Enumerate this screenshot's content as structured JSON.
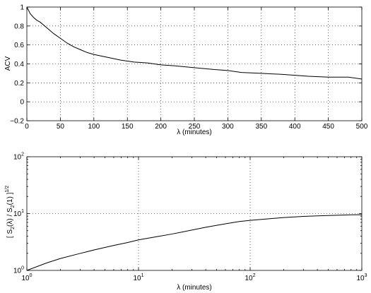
{
  "chart_data": [
    {
      "type": "line",
      "title": "",
      "xlabel": "λ (minutes)",
      "ylabel": "ACV",
      "xlim": [
        0,
        500
      ],
      "ylim": [
        -0.2,
        1
      ],
      "xscale": "linear",
      "yscale": "linear",
      "grid": true,
      "x_ticks": [
        0,
        50,
        100,
        150,
        200,
        250,
        300,
        350,
        400,
        450,
        500
      ],
      "x_tick_labels": [
        "0",
        "50",
        "100",
        "150",
        "200",
        "250",
        "300",
        "350",
        "400",
        "450",
        "500"
      ],
      "y_ticks": [
        -0.2,
        0,
        0.2,
        0.4,
        0.6,
        0.8,
        1
      ],
      "y_tick_labels": [
        "−0.2",
        "0",
        "0.2",
        "0.4",
        "0.6",
        "0.8",
        "1"
      ],
      "series": [
        {
          "x": [
            0,
            5,
            10,
            15,
            20,
            30,
            40,
            50,
            60,
            70,
            80,
            90,
            100,
            120,
            140,
            160,
            180,
            200,
            220,
            250,
            280,
            300,
            320,
            350,
            380,
            400,
            420,
            450,
            480,
            500
          ],
          "values": [
            1.0,
            0.93,
            0.89,
            0.86,
            0.84,
            0.78,
            0.72,
            0.67,
            0.62,
            0.58,
            0.55,
            0.52,
            0.5,
            0.47,
            0.44,
            0.42,
            0.41,
            0.39,
            0.38,
            0.36,
            0.34,
            0.33,
            0.31,
            0.3,
            0.29,
            0.28,
            0.27,
            0.26,
            0.26,
            0.24
          ]
        }
      ]
    },
    {
      "type": "line",
      "title": "",
      "xlabel": "λ (minutes)",
      "ylabel": "[ S2(λ) / S2(1) ]^1/2",
      "xlim": [
        1,
        1000
      ],
      "ylim": [
        1,
        100
      ],
      "xscale": "log",
      "yscale": "log",
      "grid": true,
      "x_ticks": [
        1,
        10,
        100,
        1000
      ],
      "x_tick_labels": [
        {
          "base": "10",
          "exp": "0"
        },
        {
          "base": "10",
          "exp": "1"
        },
        {
          "base": "10",
          "exp": "2"
        },
        {
          "base": "10",
          "exp": "3"
        }
      ],
      "y_ticks": [
        1,
        10,
        100
      ],
      "y_tick_labels": [
        {
          "base": "10",
          "exp": "0"
        },
        {
          "base": "10",
          "exp": "1"
        },
        {
          "base": "10",
          "exp": "2"
        }
      ],
      "ylabel_parts": {
        "open": "[ S",
        "sub1": "2",
        "mid": "(λ) / S",
        "sub2": "2",
        "close": "(1) ]",
        "sup": "1/2"
      },
      "series": [
        {
          "x": [
            1,
            1.5,
            2,
            3,
            4,
            6,
            8,
            10,
            15,
            20,
            30,
            40,
            60,
            80,
            100,
            150,
            200,
            300,
            400,
            600,
            800,
            1000
          ],
          "values": [
            1.0,
            1.35,
            1.62,
            1.99,
            2.29,
            2.75,
            3.1,
            3.45,
            3.96,
            4.37,
            5.12,
            5.75,
            6.61,
            7.24,
            7.6,
            8.13,
            8.51,
            8.91,
            9.12,
            9.33,
            9.5,
            9.55
          ]
        }
      ]
    }
  ]
}
